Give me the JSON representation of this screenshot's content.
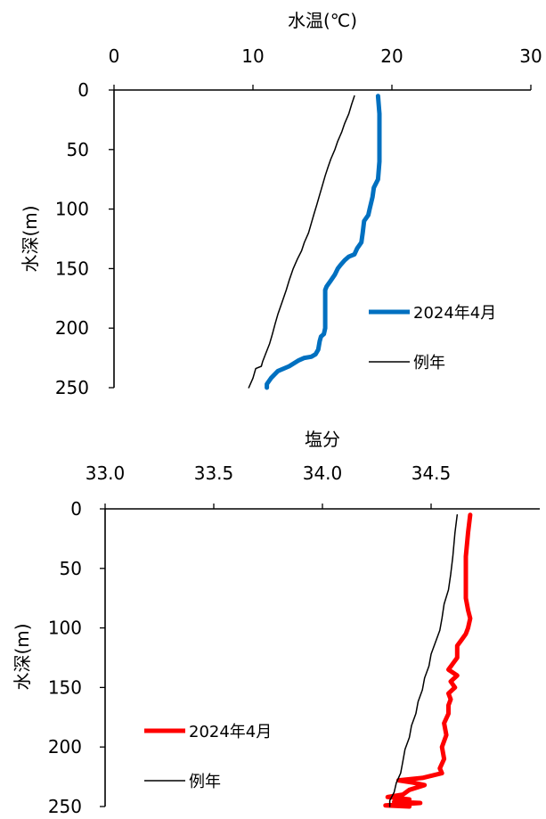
{
  "chart_data": [
    {
      "type": "line",
      "xlabel": "水温(℃)",
      "ylabel": "水深(m)",
      "xlim": [
        0,
        30
      ],
      "ylim": [
        0,
        250
      ],
      "y_inverted": true,
      "x_axis_position": "top",
      "xticks": [
        "0",
        "10",
        "20",
        "30"
      ],
      "yticks": [
        "0",
        "50",
        "100",
        "150",
        "200",
        "250"
      ],
      "legend_position": "right-middle",
      "series": [
        {
          "name": "2024年4月",
          "color": "#0070C0",
          "points": [
            [
              19.0,
              5
            ],
            [
              19.1,
              20
            ],
            [
              19.1,
              40
            ],
            [
              19.1,
              60
            ],
            [
              19.0,
              75
            ],
            [
              18.7,
              82
            ],
            [
              18.6,
              90
            ],
            [
              18.4,
              100
            ],
            [
              18.3,
              105
            ],
            [
              18.0,
              110
            ],
            [
              17.9,
              120
            ],
            [
              17.8,
              128
            ],
            [
              17.5,
              133
            ],
            [
              17.3,
              138
            ],
            [
              16.9,
              140
            ],
            [
              16.6,
              143
            ],
            [
              16.3,
              147
            ],
            [
              16.1,
              150
            ],
            [
              15.9,
              155
            ],
            [
              15.6,
              160
            ],
            [
              15.3,
              165
            ],
            [
              15.2,
              168
            ],
            [
              15.2,
              175
            ],
            [
              15.2,
              190
            ],
            [
              15.2,
              200
            ],
            [
              15.1,
              205
            ],
            [
              14.9,
              207
            ],
            [
              14.8,
              211
            ],
            [
              14.7,
              218
            ],
            [
              14.5,
              222
            ],
            [
              14.2,
              224
            ],
            [
              13.7,
              225
            ],
            [
              13.3,
              227
            ],
            [
              12.6,
              232
            ],
            [
              11.8,
              236
            ],
            [
              11.3,
              242
            ],
            [
              11.0,
              247
            ],
            [
              11.0,
              250
            ]
          ]
        },
        {
          "name": "例年",
          "color": "#000000",
          "points": [
            [
              17.3,
              5
            ],
            [
              17.1,
              12
            ],
            [
              16.9,
              20
            ],
            [
              16.6,
              28
            ],
            [
              16.4,
              35
            ],
            [
              16.1,
              43
            ],
            [
              15.9,
              50
            ],
            [
              15.6,
              58
            ],
            [
              15.4,
              65
            ],
            [
              15.2,
              72
            ],
            [
              15.0,
              80
            ],
            [
              14.8,
              88
            ],
            [
              14.6,
              96
            ],
            [
              14.4,
              104
            ],
            [
              14.2,
              112
            ],
            [
              14.0,
              120
            ],
            [
              13.7,
              128
            ],
            [
              13.5,
              135
            ],
            [
              13.2,
              142
            ],
            [
              12.9,
              150
            ],
            [
              12.6,
              160
            ],
            [
              12.4,
              168
            ],
            [
              12.1,
              178
            ],
            [
              11.8,
              188
            ],
            [
              11.6,
              196
            ],
            [
              11.4,
              205
            ],
            [
              11.2,
              213
            ],
            [
              10.9,
              222
            ],
            [
              10.7,
              228
            ],
            [
              10.6,
              232
            ],
            [
              10.2,
              234
            ],
            [
              10.0,
              242
            ],
            [
              9.7,
              250
            ]
          ]
        }
      ]
    },
    {
      "type": "line",
      "xlabel": "塩分",
      "ylabel": "水深(m)",
      "xlim": [
        33.0,
        35.0
      ],
      "ylim": [
        0,
        250
      ],
      "y_inverted": true,
      "x_axis_position": "top",
      "xticks": [
        "33.0",
        "33.5",
        "34.0",
        "34.5"
      ],
      "yticks": [
        "0",
        "50",
        "100",
        "150",
        "200",
        "250"
      ],
      "legend_position": "bottom-left",
      "series": [
        {
          "name": "2024年4月",
          "color": "#FF0000",
          "points": [
            [
              34.68,
              5
            ],
            [
              34.67,
              20
            ],
            [
              34.66,
              40
            ],
            [
              34.66,
              60
            ],
            [
              34.66,
              75
            ],
            [
              34.67,
              85
            ],
            [
              34.68,
              92
            ],
            [
              34.67,
              100
            ],
            [
              34.66,
              105
            ],
            [
              34.64,
              110
            ],
            [
              34.62,
              115
            ],
            [
              34.62,
              125
            ],
            [
              34.6,
              130
            ],
            [
              34.58,
              135
            ],
            [
              34.62,
              140
            ],
            [
              34.59,
              145
            ],
            [
              34.61,
              150
            ],
            [
              34.58,
              155
            ],
            [
              34.59,
              160
            ],
            [
              34.58,
              165
            ],
            [
              34.58,
              172
            ],
            [
              34.56,
              180
            ],
            [
              34.57,
              190
            ],
            [
              34.55,
              200
            ],
            [
              34.56,
              210
            ],
            [
              34.54,
              218
            ],
            [
              34.55,
              222
            ],
            [
              34.46,
              226
            ],
            [
              34.35,
              228
            ],
            [
              34.42,
              230
            ],
            [
              34.47,
              232
            ],
            [
              34.4,
              236
            ],
            [
              34.37,
              240
            ],
            [
              34.3,
              242
            ],
            [
              34.4,
              244
            ],
            [
              34.33,
              246
            ],
            [
              34.45,
              247
            ],
            [
              34.29,
              249
            ],
            [
              34.4,
              250
            ]
          ]
        },
        {
          "name": "例年",
          "color": "#000000",
          "points": [
            [
              34.62,
              5
            ],
            [
              34.61,
              20
            ],
            [
              34.6,
              40
            ],
            [
              34.59,
              55
            ],
            [
              34.58,
              68
            ],
            [
              34.56,
              80
            ],
            [
              34.55,
              92
            ],
            [
              34.54,
              102
            ],
            [
              34.52,
              112
            ],
            [
              34.5,
              122
            ],
            [
              34.49,
              132
            ],
            [
              34.47,
              142
            ],
            [
              34.46,
              152
            ],
            [
              34.44,
              162
            ],
            [
              34.43,
              172
            ],
            [
              34.41,
              182
            ],
            [
              34.4,
              192
            ],
            [
              34.38,
              202
            ],
            [
              34.37,
              212
            ],
            [
              34.36,
              222
            ],
            [
              34.34,
              230
            ],
            [
              34.33,
              238
            ],
            [
              34.31,
              245
            ],
            [
              34.31,
              250
            ]
          ]
        }
      ]
    }
  ]
}
